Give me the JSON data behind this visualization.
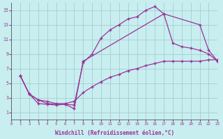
{
  "xlabel": "Windchill (Refroidissement éolien,°C)",
  "bg_color": "#c8eef0",
  "line_color": "#993399",
  "xlim": [
    0,
    23
  ],
  "ylim": [
    0,
    16
  ],
  "xticks": [
    0,
    1,
    2,
    3,
    4,
    5,
    6,
    7,
    8,
    9,
    10,
    11,
    12,
    13,
    14,
    15,
    16,
    17,
    18,
    19,
    20,
    21,
    22,
    23
  ],
  "yticks": [
    1,
    3,
    5,
    7,
    9,
    11,
    13,
    15
  ],
  "line1_x": [
    1,
    2,
    3,
    4,
    5,
    6,
    7,
    8,
    9,
    10,
    11,
    12,
    13,
    14,
    15,
    16,
    17,
    21,
    22,
    23
  ],
  "line1_y": [
    6,
    3.5,
    2.7,
    2.2,
    2.1,
    2.1,
    2.0,
    7.8,
    9.0,
    11.2,
    12.3,
    13.0,
    13.8,
    14.1,
    15.0,
    15.5,
    14.5,
    13.0,
    9.5,
    8.0
  ],
  "line2_x": [
    1,
    2,
    3,
    4,
    5,
    6,
    7,
    8,
    9,
    10,
    11,
    12,
    13,
    14,
    15,
    16,
    17,
    18,
    19,
    20,
    21,
    22,
    23
  ],
  "line2_y": [
    6,
    3.5,
    2.7,
    2.5,
    2.2,
    2.2,
    2.5,
    3.7,
    4.5,
    5.2,
    5.8,
    6.2,
    6.7,
    7.0,
    7.4,
    7.7,
    8.0,
    8.0,
    8.0,
    8.0,
    8.0,
    8.2,
    8.2
  ],
  "line3_x": [
    1,
    2,
    3,
    4,
    5,
    6,
    7,
    8,
    17,
    18,
    19,
    20,
    21,
    22,
    23
  ],
  "line3_y": [
    6,
    3.5,
    2.2,
    2.1,
    2.0,
    2.1,
    1.5,
    8.0,
    14.5,
    10.5,
    10.0,
    9.8,
    9.5,
    9.0,
    8.0
  ]
}
